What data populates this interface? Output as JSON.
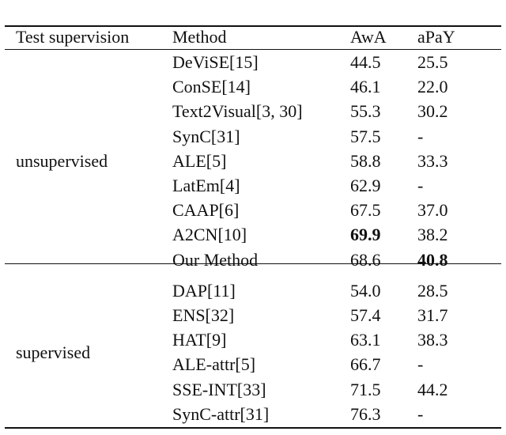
{
  "table": {
    "header": [
      "Test supervision",
      "Method",
      "AwA",
      "aPaY"
    ],
    "groups": [
      {
        "label": "unsupervised",
        "rows": [
          {
            "cells": [
              "DeViSE[15]",
              "44.5",
              "25.5"
            ],
            "bold": []
          },
          {
            "cells": [
              "ConSE[14]",
              "46.1",
              "22.0"
            ],
            "bold": []
          },
          {
            "cells": [
              "Text2Visual[3, 30]",
              "55.3",
              "30.2"
            ],
            "bold": []
          },
          {
            "cells": [
              "SynC[31]",
              "57.5",
              "-"
            ],
            "bold": []
          },
          {
            "cells": [
              "ALE[5]",
              "58.8",
              "33.3"
            ],
            "bold": []
          },
          {
            "cells": [
              "LatEm[4]",
              "62.9",
              "-"
            ],
            "bold": []
          },
          {
            "cells": [
              "CAAP[6]",
              "67.5",
              "37.0"
            ],
            "bold": []
          },
          {
            "cells": [
              "A2CN[10]",
              "69.9",
              "38.2"
            ],
            "bold": [
              1
            ]
          },
          {
            "cells": [
              "Our Method",
              "68.6",
              "40.8"
            ],
            "bold": [
              2
            ]
          }
        ]
      },
      {
        "label": "supervised",
        "rows": [
          {
            "cells": [
              "DAP[11]",
              "54.0",
              "28.5"
            ],
            "bold": []
          },
          {
            "cells": [
              "ENS[32]",
              "57.4",
              "31.7"
            ],
            "bold": []
          },
          {
            "cells": [
              "HAT[9]",
              "63.1",
              "38.3"
            ],
            "bold": []
          },
          {
            "cells": [
              "ALE-attr[5]",
              "66.7",
              "-"
            ],
            "bold": []
          },
          {
            "cells": [
              "SSE-INT[33]",
              "71.5",
              "44.2"
            ],
            "bold": []
          },
          {
            "cells": [
              "SynC-attr[31]",
              "76.3",
              "-"
            ],
            "bold": []
          }
        ]
      }
    ]
  }
}
